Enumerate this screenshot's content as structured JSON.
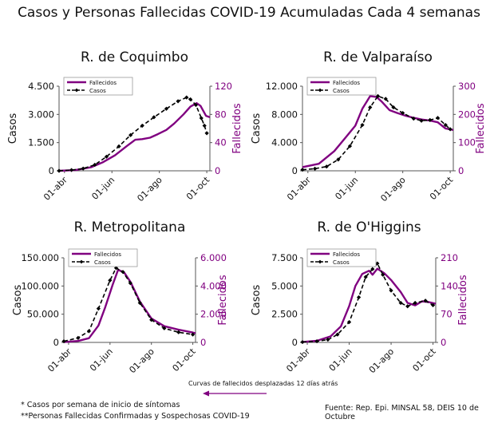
{
  "title": "Casos y Personas Fallecidas COVID-19 Acumuladas Cada 4 semanas",
  "colors": {
    "fallecidos": "#800080",
    "casos": "#000000",
    "axis_right": "#800080"
  },
  "footer": {
    "note_casos": "* Casos por semana de inicio de síntomas",
    "note_fallecidos": "**Personas Fallecidas Confirmadas y Sospechosas COVID-19",
    "source": "Fuente: Rep. Epi. MINSAL 58, DEIS 10 de Octubre",
    "shift_note": "Curvas de fallecidos desplazadas 12 días atrás"
  },
  "chart_data": [
    {
      "type": "line",
      "title": "R. de Coquimbo",
      "ylabel": "Casos",
      "ylabel_right": "Fallecidos",
      "x_ticks": [
        "01-abr",
        "01-jun",
        "01-ago",
        "01-oct"
      ],
      "ylim": [
        0,
        4500
      ],
      "y_ticks": [
        "0",
        "1.500",
        "3.000",
        "4.500"
      ],
      "ylim_right": [
        0,
        120
      ],
      "y_ticks_right": [
        "0",
        "40",
        "80",
        "120"
      ],
      "legend": "top-left",
      "series": [
        {
          "name": "Fallecidos",
          "axis": "right",
          "points": [
            [
              "2020-03-25",
              0
            ],
            [
              "2020-04-15",
              1
            ],
            [
              "2020-05-05",
              5
            ],
            [
              "2020-05-20",
              12
            ],
            [
              "2020-06-05",
              22
            ],
            [
              "2020-06-20",
              35
            ],
            [
              "2020-07-01",
              44
            ],
            [
              "2020-07-10",
              45
            ],
            [
              "2020-07-20",
              47
            ],
            [
              "2020-07-30",
              52
            ],
            [
              "2020-08-10",
              58
            ],
            [
              "2020-08-20",
              67
            ],
            [
              "2020-09-01",
              80
            ],
            [
              "2020-09-10",
              91
            ],
            [
              "2020-09-18",
              96
            ],
            [
              "2020-09-23",
              92
            ],
            [
              "2020-09-27",
              84
            ],
            [
              "2020-09-30",
              78
            ],
            [
              "2020-10-05",
              76
            ]
          ]
        },
        {
          "name": "Casos",
          "axis": "left",
          "points": [
            [
              "2020-03-25",
              0
            ],
            [
              "2020-04-10",
              40
            ],
            [
              "2020-04-25",
              120
            ],
            [
              "2020-05-10",
              320
            ],
            [
              "2020-05-25",
              750
            ],
            [
              "2020-06-10",
              1300
            ],
            [
              "2020-06-25",
              1900
            ],
            [
              "2020-07-10",
              2400
            ],
            [
              "2020-07-25",
              2850
            ],
            [
              "2020-08-10",
              3300
            ],
            [
              "2020-08-25",
              3700
            ],
            [
              "2020-09-05",
              3900
            ],
            [
              "2020-09-10",
              3800
            ],
            [
              "2020-09-17",
              3500
            ],
            [
              "2020-09-24",
              2800
            ],
            [
              "2020-09-28",
              2400
            ],
            [
              "2020-10-01",
              2000
            ]
          ]
        }
      ]
    },
    {
      "type": "line",
      "title": "R. de Valparaíso",
      "ylabel": "Casos",
      "ylabel_right": "Fallecidos",
      "x_ticks": [
        "01-abr",
        "01-jun",
        "01-ago",
        "01-oct"
      ],
      "ylim": [
        0,
        12000
      ],
      "y_ticks": [
        "0",
        "4.000",
        "8.000",
        "12.000"
      ],
      "ylim_right": [
        0,
        300
      ],
      "y_ticks_right": [
        "0",
        "100",
        "200",
        "300"
      ],
      "legend": "top-left",
      "series": [
        {
          "name": "Fallecidos",
          "axis": "right",
          "points": [
            [
              "2020-03-25",
              13
            ],
            [
              "2020-04-15",
              25
            ],
            [
              "2020-05-05",
              70
            ],
            [
              "2020-05-20",
              120
            ],
            [
              "2020-06-01",
              160
            ],
            [
              "2020-06-10",
              220
            ],
            [
              "2020-06-20",
              265
            ],
            [
              "2020-06-28",
              262
            ],
            [
              "2020-07-05",
              245
            ],
            [
              "2020-07-15",
              215
            ],
            [
              "2020-07-25",
              205
            ],
            [
              "2020-08-05",
              195
            ],
            [
              "2020-08-15",
              188
            ],
            [
              "2020-08-25",
              182
            ],
            [
              "2020-09-05",
              178
            ],
            [
              "2020-09-15",
              172
            ],
            [
              "2020-09-25",
              150
            ],
            [
              "2020-10-05",
              145
            ]
          ]
        },
        {
          "name": "Casos",
          "axis": "left",
          "points": [
            [
              "2020-03-25",
              150
            ],
            [
              "2020-04-10",
              300
            ],
            [
              "2020-04-25",
              600
            ],
            [
              "2020-05-10",
              1600
            ],
            [
              "2020-05-25",
              3500
            ],
            [
              "2020-06-10",
              6500
            ],
            [
              "2020-06-20",
              9000
            ],
            [
              "2020-06-30",
              10600
            ],
            [
              "2020-07-10",
              10200
            ],
            [
              "2020-07-20",
              9000
            ],
            [
              "2020-08-01",
              8200
            ],
            [
              "2020-08-15",
              7400
            ],
            [
              "2020-08-25",
              7100
            ],
            [
              "2020-09-05",
              7200
            ],
            [
              "2020-09-15",
              7500
            ],
            [
              "2020-09-25",
              6500
            ],
            [
              "2020-10-01",
              5900
            ]
          ]
        }
      ]
    },
    {
      "type": "line",
      "title": "R. Metropolitana",
      "ylabel": "Casos",
      "ylabel_right": "Fallecidos",
      "x_ticks": [
        "01-abr",
        "01-jun",
        "01-ago",
        "01-oct"
      ],
      "ylim": [
        0,
        150000
      ],
      "y_ticks": [
        "0",
        "50.000",
        "100.000",
        "150.000"
      ],
      "ylim_right": [
        0,
        6000
      ],
      "y_ticks_right": [
        "0",
        "2.000",
        "4.000",
        "6.000"
      ],
      "legend": "top-left",
      "series": [
        {
          "name": "Fallecidos",
          "axis": "right",
          "points": [
            [
              "2020-03-25",
              20
            ],
            [
              "2020-04-15",
              100
            ],
            [
              "2020-05-01",
              300
            ],
            [
              "2020-05-15",
              1200
            ],
            [
              "2020-05-25",
              2500
            ],
            [
              "2020-06-05",
              4100
            ],
            [
              "2020-06-13",
              5150
            ],
            [
              "2020-06-22",
              4950
            ],
            [
              "2020-07-01",
              4300
            ],
            [
              "2020-07-15",
              2900
            ],
            [
              "2020-08-01",
              1700
            ],
            [
              "2020-08-20",
              1150
            ],
            [
              "2020-09-10",
              900
            ],
            [
              "2020-10-01",
              700
            ],
            [
              "2020-10-05",
              650
            ]
          ]
        },
        {
          "name": "Casos",
          "axis": "left",
          "points": [
            [
              "2020-03-25",
              2000
            ],
            [
              "2020-04-15",
              8000
            ],
            [
              "2020-05-01",
              20000
            ],
            [
              "2020-05-15",
              60000
            ],
            [
              "2020-06-01",
              110000
            ],
            [
              "2020-06-10",
              132000
            ],
            [
              "2020-06-20",
              125000
            ],
            [
              "2020-07-01",
              105000
            ],
            [
              "2020-07-15",
              70000
            ],
            [
              "2020-08-01",
              40000
            ],
            [
              "2020-08-20",
              25000
            ],
            [
              "2020-09-10",
              18000
            ],
            [
              "2020-10-01",
              14000
            ]
          ]
        }
      ]
    },
    {
      "type": "line",
      "title": "R. de O'Higgins",
      "ylabel": "Casos",
      "ylabel_right": "Fallecidos",
      "x_ticks": [
        "01-abr",
        "01-jun",
        "01-ago",
        "01-oct"
      ],
      "ylim": [
        0,
        7500
      ],
      "y_ticks": [
        "0",
        "2.500",
        "5.000",
        "7.500"
      ],
      "ylim_right": [
        0,
        210
      ],
      "y_ticks_right": [
        "0",
        "70",
        "140",
        "210"
      ],
      "legend": "top-left",
      "series": [
        {
          "name": "Fallecidos",
          "axis": "right",
          "points": [
            [
              "2020-03-25",
              1
            ],
            [
              "2020-04-15",
              4
            ],
            [
              "2020-05-05",
              15
            ],
            [
              "2020-05-20",
              40
            ],
            [
              "2020-06-01",
              90
            ],
            [
              "2020-06-10",
              140
            ],
            [
              "2020-06-20",
              170
            ],
            [
              "2020-06-30",
              178
            ],
            [
              "2020-07-05",
              168
            ],
            [
              "2020-07-12",
              183
            ],
            [
              "2020-07-22",
              172
            ],
            [
              "2020-08-01",
              155
            ],
            [
              "2020-08-15",
              125
            ],
            [
              "2020-08-25",
              98
            ],
            [
              "2020-09-05",
              92
            ],
            [
              "2020-09-15",
              102
            ],
            [
              "2020-09-25",
              100
            ],
            [
              "2020-10-05",
              96
            ]
          ]
        },
        {
          "name": "Casos",
          "axis": "left",
          "points": [
            [
              "2020-03-25",
              30
            ],
            [
              "2020-04-15",
              100
            ],
            [
              "2020-05-01",
              250
            ],
            [
              "2020-05-15",
              700
            ],
            [
              "2020-06-01",
              1800
            ],
            [
              "2020-06-15",
              4000
            ],
            [
              "2020-06-25",
              5800
            ],
            [
              "2020-07-05",
              6500
            ],
            [
              "2020-07-12",
              7000
            ],
            [
              "2020-07-20",
              6000
            ],
            [
              "2020-08-01",
              4600
            ],
            [
              "2020-08-15",
              3500
            ],
            [
              "2020-08-25",
              3200
            ],
            [
              "2020-09-05",
              3500
            ],
            [
              "2020-09-20",
              3700
            ],
            [
              "2020-10-01",
              3300
            ]
          ]
        }
      ]
    }
  ]
}
